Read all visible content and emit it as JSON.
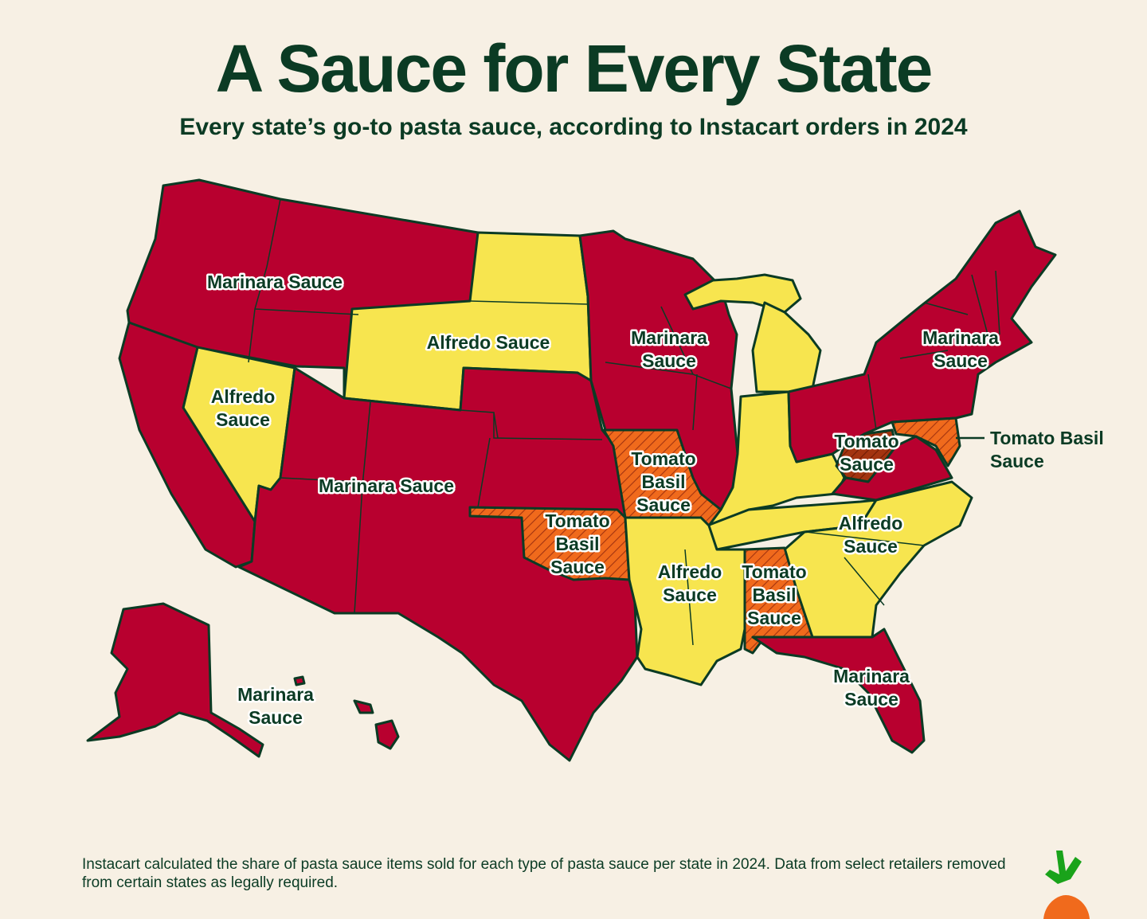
{
  "header": {
    "title": "A Sauce for Every State",
    "subtitle": "Every state’s go-to pasta sauce, according to Instacart orders in 2024"
  },
  "colors": {
    "marinara": "#b8002f",
    "alfredo": "#f7e54f",
    "tomato_basil": "#f06a1c",
    "tomato_sauce": "#a33410",
    "outline": "#0b3b24",
    "background": "#f7f0e4"
  },
  "regions": {
    "northwest": {
      "label": [
        "Marinara Sauce"
      ],
      "sauce": "marinara"
    },
    "northern_plains": {
      "label": [
        "Alfredo Sauce"
      ],
      "sauce": "alfredo"
    },
    "nevada": {
      "label": [
        "Alfredo",
        "Sauce"
      ],
      "sauce": "alfredo"
    },
    "southwest": {
      "label": [
        "Marinara Sauce"
      ],
      "sauce": "marinara"
    },
    "upper_midwest": {
      "label": [
        "Marinara",
        "Sauce"
      ],
      "sauce": "marinara"
    },
    "northeast": {
      "label": [
        "Marinara",
        "Sauce"
      ],
      "sauce": "marinara"
    },
    "missouri": {
      "label": [
        "Tomato",
        "Basil",
        "Sauce"
      ],
      "sauce": "tomato_basil"
    },
    "oklahoma": {
      "label": [
        "Tomato",
        "Basil",
        "Sauce"
      ],
      "sauce": "tomato_basil"
    },
    "west_virginia": {
      "label": [
        "Tomato",
        "Sauce"
      ],
      "sauce": "tomato_sauce"
    },
    "maryland_delaware": {
      "label": [
        "Tomato Basil",
        "Sauce"
      ],
      "sauce": "tomato_basil"
    },
    "southeast": {
      "label": [
        "Alfredo",
        "Sauce"
      ],
      "sauce": "alfredo"
    },
    "lower_mississippi": {
      "label": [
        "Alfredo",
        "Sauce"
      ],
      "sauce": "alfredo"
    },
    "alabama": {
      "label": [
        "Tomato",
        "Basil",
        "Sauce"
      ],
      "sauce": "tomato_basil"
    },
    "florida": {
      "label": [
        "Marinara",
        "Sauce"
      ],
      "sauce": "marinara"
    },
    "alaska_hawaii": {
      "label": [
        "Marinara",
        "Sauce"
      ],
      "sauce": "marinara"
    }
  },
  "footnote": "Instacart calculated the share of pasta sauce items sold for each type of pasta sauce per state in 2024. Data from select retailers removed from certain states as legally required.",
  "logo": {
    "icon": "carrot-icon"
  }
}
